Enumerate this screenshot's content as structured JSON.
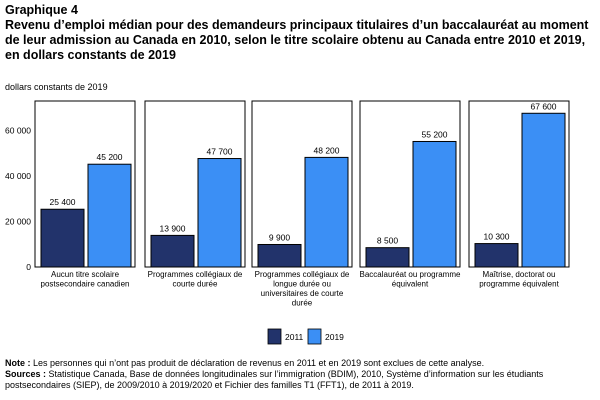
{
  "figure_label": "Graphique 4",
  "title": "Revenu d’emploi médian pour des demandeurs principaux titulaires d’un baccalauréat au moment de leur admission au Canada en 2010, selon le titre scolaire obtenu au Canada entre 2010 et 2019, en dollars constants de 2019",
  "unit_label": "dollars constants de 2019",
  "note_label": "Note :",
  "note_text": "Les personnes qui n’ont pas produit de déclaration de revenus en 2011 et en 2019 sont exclues de cette analyse.",
  "sources_label": "Sources :",
  "sources_text": "Statistique Canada, Base de données longitudinales sur l’immigration (BDIM), 2010, Système d’information sur les étudiants postsecondaires (SIEP), de 2009/2010 à 2019/2020 et Fichier des familles T1 (FFT1), de 2011 à 2019.",
  "colors": {
    "2011": "#22336b",
    "2019": "#3b8ff5",
    "frame": "#000000"
  },
  "chart_data": {
    "type": "bar",
    "panels": [
      {
        "label": [
          "Aucun titre scolaire",
          "postsecondaire canadien"
        ]
      },
      {
        "label": [
          "Programmes collégiaux de",
          "courte durée"
        ]
      },
      {
        "label": [
          "Programmes collégiaux de",
          "longue durée ou",
          "universitaires de courte",
          "durée"
        ]
      },
      {
        "label": [
          "Baccalauréat ou programme",
          "équivalent"
        ]
      },
      {
        "label": [
          "Maîtrise, doctorat ou",
          "programme équivalent"
        ]
      }
    ],
    "series": [
      {
        "name": "2011",
        "values": [
          25400,
          13900,
          9900,
          8500,
          10300
        ],
        "labels": [
          "25 400",
          "13 900",
          "9 900",
          "8 500",
          "10 300"
        ]
      },
      {
        "name": "2019",
        "values": [
          45200,
          47700,
          48200,
          55200,
          67600
        ],
        "labels": [
          "45 200",
          "47 700",
          "48 200",
          "55 200",
          "67 600"
        ]
      }
    ],
    "yticks": [
      0,
      20000,
      40000,
      60000
    ],
    "ytick_labels": [
      "0",
      "20 000",
      "40 000",
      "60 000"
    ],
    "ylim": [
      0,
      73000
    ],
    "legend_position": "bottom-center"
  }
}
